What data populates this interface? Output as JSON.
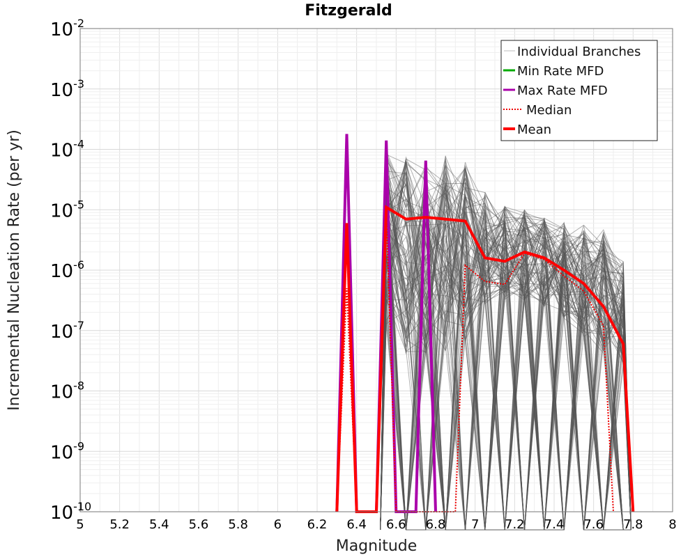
{
  "chart_data": {
    "type": "line",
    "title": "Fitzgerald",
    "xlabel": "Magnitude",
    "ylabel": "Incremental Nucleation Rate (per yr)",
    "xlim": [
      5,
      8
    ],
    "ylim": [
      1e-10,
      0.01
    ],
    "yscale": "log",
    "grid": true,
    "legend_position": "top-right",
    "x_ticks": [
      "5",
      "5.2",
      "5.4",
      "5.6",
      "5.8",
      "6",
      "6.2",
      "6.4",
      "6.6",
      "6.8",
      "7",
      "7.2",
      "7.4",
      "7.6",
      "7.8",
      "8"
    ],
    "y_tick_exponents": [
      "-10",
      "-9",
      "-8",
      "-7",
      "-6",
      "-5",
      "-4",
      "-3",
      "-2"
    ],
    "y_tick_base": "10",
    "colors": {
      "branches": "#555555",
      "min": "#00aa00",
      "max": "#aa00aa",
      "median": "#ee0000",
      "mean": "#ff0000"
    },
    "legend": [
      {
        "label": "Individual Branches",
        "style": "thin-gray"
      },
      {
        "label": "Min Rate MFD",
        "style": "green"
      },
      {
        "label": "Max Rate MFD",
        "style": "purple"
      },
      {
        "label": "Median",
        "style": "dotted-red"
      },
      {
        "label": "Mean",
        "style": "thick-red"
      }
    ],
    "series": [
      {
        "name": "Max Rate MFD",
        "x": [
          6.3,
          6.35,
          6.4,
          6.5,
          6.55,
          6.6,
          6.7,
          6.75,
          6.8
        ],
        "y": [
          1e-10,
          0.00018,
          1e-10,
          1e-10,
          0.00014,
          1e-10,
          1e-10,
          6.5e-05,
          1e-10
        ]
      },
      {
        "name": "Median",
        "x": [
          6.3,
          6.35,
          6.4,
          6.5,
          6.55,
          6.6,
          6.9,
          6.95,
          7.05,
          7.15,
          7.25,
          7.35,
          7.45,
          7.55,
          7.65,
          7.7
        ],
        "y": [
          1e-10,
          5e-07,
          1e-10,
          1e-10,
          9e-06,
          1e-10,
          1e-10,
          1.2e-06,
          6.5e-07,
          5.8e-07,
          1.9e-06,
          1.5e-06,
          8e-07,
          4.5e-07,
          1.2e-07,
          1e-10
        ]
      },
      {
        "name": "Mean",
        "x": [
          6.3,
          6.35,
          6.4,
          6.5,
          6.55,
          6.65,
          6.75,
          6.85,
          6.95,
          7.05,
          7.15,
          7.25,
          7.35,
          7.45,
          7.55,
          7.65,
          7.75,
          7.8
        ],
        "y": [
          1e-10,
          6e-06,
          1e-10,
          1e-10,
          1.1e-05,
          7e-06,
          7.5e-06,
          7e-06,
          6.5e-06,
          1.6e-06,
          1.4e-06,
          2e-06,
          1.6e-06,
          1e-06,
          6e-07,
          2.5e-07,
          6e-08,
          1e-10
        ]
      }
    ]
  }
}
